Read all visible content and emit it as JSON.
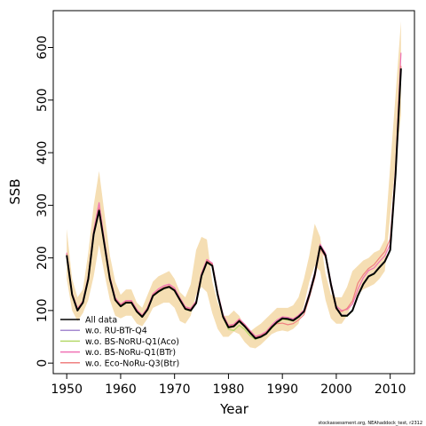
{
  "chart_data": {
    "type": "line",
    "xlabel": "Year",
    "ylabel": "SSB",
    "xlim": [
      1947.5,
      2014.5
    ],
    "ylim": [
      -20,
      670
    ],
    "xticks": [
      1950,
      1960,
      1970,
      1980,
      1990,
      2000,
      2010
    ],
    "yticks": [
      0,
      100,
      200,
      300,
      400,
      500,
      600
    ],
    "grid": false,
    "legend_position": "bottom-left",
    "credit": "stockassessment.org, NEAhaddock_test, r2312",
    "x": [
      1950,
      1951,
      1952,
      1953,
      1954,
      1955,
      1956,
      1957,
      1958,
      1959,
      1960,
      1961,
      1962,
      1963,
      1964,
      1965,
      1966,
      1967,
      1968,
      1969,
      1970,
      1971,
      1972,
      1973,
      1974,
      1975,
      1976,
      1977,
      1978,
      1979,
      1980,
      1981,
      1982,
      1983,
      1984,
      1985,
      1986,
      1987,
      1988,
      1989,
      1990,
      1991,
      1992,
      1993,
      1994,
      1995,
      1996,
      1997,
      1998,
      1999,
      2000,
      2001,
      2002,
      2003,
      2004,
      2005,
      2006,
      2007,
      2008,
      2009,
      2010,
      2011,
      2012
    ],
    "band": {
      "color": "#f5deb3",
      "lower": [
        160,
        100,
        80,
        95,
        120,
        165,
        225,
        170,
        120,
        90,
        85,
        90,
        90,
        75,
        70,
        85,
        105,
        110,
        115,
        115,
        105,
        80,
        75,
        90,
        130,
        145,
        135,
        95,
        65,
        50,
        50,
        60,
        55,
        40,
        30,
        28,
        35,
        45,
        55,
        60,
        62,
        60,
        65,
        75,
        110,
        155,
        185,
        175,
        120,
        85,
        75,
        75,
        90,
        115,
        130,
        140,
        145,
        150,
        160,
        175,
        280,
        380,
        470
      ],
      "upper": [
        255,
        160,
        125,
        140,
        210,
        300,
        365,
        285,
        205,
        155,
        130,
        140,
        140,
        115,
        105,
        130,
        155,
        165,
        170,
        175,
        160,
        135,
        125,
        150,
        215,
        240,
        235,
        155,
        115,
        90,
        90,
        100,
        90,
        70,
        60,
        68,
        75,
        85,
        95,
        105,
        105,
        105,
        110,
        125,
        160,
        205,
        265,
        240,
        170,
        130,
        125,
        125,
        145,
        175,
        185,
        195,
        200,
        210,
        215,
        235,
        375,
        510,
        650
      ]
    },
    "series": [
      {
        "name": "All data",
        "color": "#000000",
        "width": 2.0,
        "values": [
          205,
          130,
          100,
          115,
          160,
          245,
          290,
          225,
          160,
          120,
          108,
          115,
          115,
          98,
          88,
          102,
          128,
          136,
          142,
          145,
          138,
          120,
          103,
          100,
          114,
          166,
          192,
          185,
          130,
          88,
          68,
          70,
          80,
          70,
          58,
          47,
          50,
          56,
          68,
          78,
          85,
          84,
          81,
          88,
          98,
          130,
          168,
          222,
          205,
          150,
          105,
          90,
          90,
          100,
          128,
          150,
          165,
          170,
          182,
          193,
          215,
          360,
          560
        ]
      },
      {
        "name": "w.o. RU-BTr-Q4",
        "color": "#a68ad1",
        "width": 1.2,
        "values": [
          207,
          131,
          102,
          116,
          162,
          247,
          292,
          227,
          161,
          121,
          109,
          116,
          116,
          99,
          89,
          103,
          129,
          137,
          143,
          146,
          139,
          121,
          104,
          101,
          115,
          167,
          193,
          186,
          131,
          89,
          69,
          71,
          81,
          71,
          59,
          48,
          51,
          57,
          69,
          79,
          86,
          85,
          82,
          89,
          99,
          131,
          169,
          223,
          206,
          151,
          106,
          91,
          91,
          101,
          129,
          151,
          166,
          171,
          183,
          194,
          216,
          362,
          562
        ]
      },
      {
        "name": "w.o. BS-NoRU-Q1(Aco)",
        "color": "#b5d96b",
        "width": 1.2,
        "values": [
          206,
          129,
          101,
          114,
          159,
          244,
          289,
          224,
          159,
          119,
          107,
          114,
          114,
          97,
          87,
          101,
          127,
          135,
          141,
          144,
          137,
          119,
          102,
          99,
          113,
          165,
          191,
          184,
          129,
          87,
          64,
          62,
          72,
          64,
          52,
          45,
          49,
          55,
          66,
          76,
          83,
          82,
          80,
          87,
          97,
          129,
          167,
          221,
          204,
          149,
          104,
          89,
          89,
          99,
          127,
          149,
          164,
          169,
          181,
          192,
          214,
          358,
          558
        ]
      },
      {
        "name": "w.o. BS-NoRu-Q1(BTr)",
        "color": "#f071b4",
        "width": 1.2,
        "values": [
          210,
          133,
          104,
          118,
          165,
          252,
          305,
          232,
          165,
          124,
          112,
          119,
          119,
          102,
          91,
          106,
          132,
          141,
          147,
          150,
          143,
          124,
          107,
          104,
          118,
          171,
          197,
          190,
          135,
          92,
          72,
          74,
          84,
          74,
          62,
          51,
          54,
          60,
          72,
          82,
          88,
          87,
          84,
          91,
          101,
          134,
          172,
          226,
          209,
          154,
          108,
          100,
          102,
          112,
          140,
          162,
          176,
          181,
          193,
          204,
          226,
          372,
          590
        ]
      },
      {
        "name": "w.o. Eco-NoRu-Q3(Btr)",
        "color": "#f08080",
        "width": 1.2,
        "values": [
          208,
          132,
          103,
          117,
          163,
          249,
          295,
          229,
          163,
          122,
          110,
          117,
          117,
          100,
          90,
          104,
          130,
          138,
          144,
          147,
          140,
          122,
          105,
          102,
          116,
          168,
          195,
          188,
          133,
          90,
          70,
          72,
          82,
          72,
          60,
          49,
          52,
          58,
          70,
          75,
          76,
          73,
          75,
          82,
          92,
          125,
          162,
          218,
          201,
          146,
          102,
          98,
          104,
          118,
          152,
          168,
          180,
          187,
          200,
          212,
          236,
          365,
          565
        ]
      }
    ]
  }
}
